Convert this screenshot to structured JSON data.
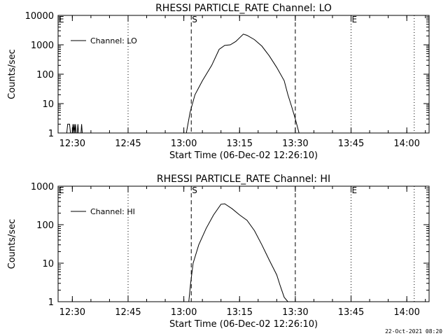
{
  "footer": "22-Oct-2021 08:20",
  "chart_data": [
    {
      "type": "line",
      "title": "RHESSI PARTICLE_RATE Channel: LO",
      "xlabel": "Start Time (06-Dec-02 12:26:10)",
      "ylabel": "Counts/sec",
      "yscale": "log",
      "xlim": [
        "12:26:10",
        "14:06:00"
      ],
      "ylim": [
        1,
        10000
      ],
      "xticks": [
        "12:30",
        "12:45",
        "13:00",
        "13:15",
        "13:30",
        "13:45",
        "14:00"
      ],
      "yticks": [
        "1",
        "10",
        "100",
        "1000",
        "10000"
      ],
      "legend": {
        "position": "top-left",
        "entries": [
          "Channel: LO"
        ]
      },
      "markers": [
        {
          "time": "12:45",
          "style": "dotted",
          "label": ""
        },
        {
          "time": "13:02",
          "style": "dashed",
          "label": "S"
        },
        {
          "time": "13:30",
          "style": "dashed",
          "label": ""
        },
        {
          "time": "13:45",
          "style": "dotted",
          "label": "E"
        },
        {
          "time": "14:02",
          "style": "dotted",
          "label": ""
        }
      ],
      "corner_label": "E",
      "series": [
        {
          "name": "Channel: LO",
          "points": [
            [
              "12:28:30",
              1
            ],
            [
              "12:28:45",
              2
            ],
            [
              "12:29:15",
              2
            ],
            [
              "12:29:30",
              1
            ],
            [
              "12:30:00",
              1
            ],
            [
              "12:30:10",
              2
            ],
            [
              "12:30:20",
              1
            ],
            [
              "12:30:30",
              2
            ],
            [
              "12:30:40",
              1
            ],
            [
              "12:30:50",
              2
            ],
            [
              "12:31:00",
              1
            ],
            [
              "12:31:20",
              1
            ],
            [
              "12:31:30",
              2
            ],
            [
              "12:31:40",
              1
            ],
            [
              "12:32:20",
              1
            ],
            [
              "12:32:30",
              2
            ],
            [
              "12:32:40",
              1
            ],
            [
              "13:00:40",
              1
            ],
            [
              "13:01:40",
              5
            ],
            [
              "13:03:00",
              20
            ],
            [
              "13:05:00",
              60
            ],
            [
              "13:07:30",
              200
            ],
            [
              "13:09:30",
              700
            ],
            [
              "13:11:00",
              950
            ],
            [
              "13:12:30",
              1000
            ],
            [
              "13:14:00",
              1300
            ],
            [
              "13:16:00",
              2300
            ],
            [
              "13:17:00",
              2100
            ],
            [
              "13:19:00",
              1500
            ],
            [
              "13:21:00",
              900
            ],
            [
              "13:23:00",
              420
            ],
            [
              "13:25:00",
              170
            ],
            [
              "13:27:00",
              60
            ],
            [
              "13:28:00",
              20
            ],
            [
              "13:29:00",
              8
            ],
            [
              "13:30:00",
              3
            ],
            [
              "13:31:00",
              1
            ]
          ]
        }
      ]
    },
    {
      "type": "line",
      "title": "RHESSI PARTICLE_RATE Channel: HI",
      "xlabel": "Start Time (06-Dec-02 12:26:10)",
      "ylabel": "Counts/sec",
      "yscale": "log",
      "xlim": [
        "12:26:10",
        "14:06:00"
      ],
      "ylim": [
        1,
        1000
      ],
      "xticks": [
        "12:30",
        "12:45",
        "13:00",
        "13:15",
        "13:30",
        "13:45",
        "14:00"
      ],
      "yticks": [
        "1",
        "10",
        "100",
        "1000"
      ],
      "legend": {
        "position": "top-left",
        "entries": [
          "Channel: HI"
        ]
      },
      "markers": [
        {
          "time": "12:45",
          "style": "dotted",
          "label": ""
        },
        {
          "time": "13:02",
          "style": "dashed",
          "label": "S"
        },
        {
          "time": "13:30",
          "style": "dashed",
          "label": ""
        },
        {
          "time": "13:45",
          "style": "dotted",
          "label": "E"
        },
        {
          "time": "14:02",
          "style": "dotted",
          "label": ""
        }
      ],
      "corner_label": "E",
      "series": [
        {
          "name": "Channel: HI",
          "points": [
            [
              "13:01:20",
              1
            ],
            [
              "13:01:50",
              3
            ],
            [
              "13:02:30",
              10
            ],
            [
              "13:04:00",
              30
            ],
            [
              "13:06:00",
              80
            ],
            [
              "13:08:00",
              180
            ],
            [
              "13:10:00",
              340
            ],
            [
              "13:11:00",
              350
            ],
            [
              "13:13:00",
              260
            ],
            [
              "13:15:00",
              180
            ],
            [
              "13:17:00",
              130
            ],
            [
              "13:19:00",
              70
            ],
            [
              "13:21:00",
              30
            ],
            [
              "13:23:00",
              12
            ],
            [
              "13:25:00",
              5
            ],
            [
              "13:26:00",
              2.5
            ],
            [
              "13:27:00",
              1.3
            ],
            [
              "13:28:00",
              1
            ]
          ]
        }
      ]
    }
  ]
}
